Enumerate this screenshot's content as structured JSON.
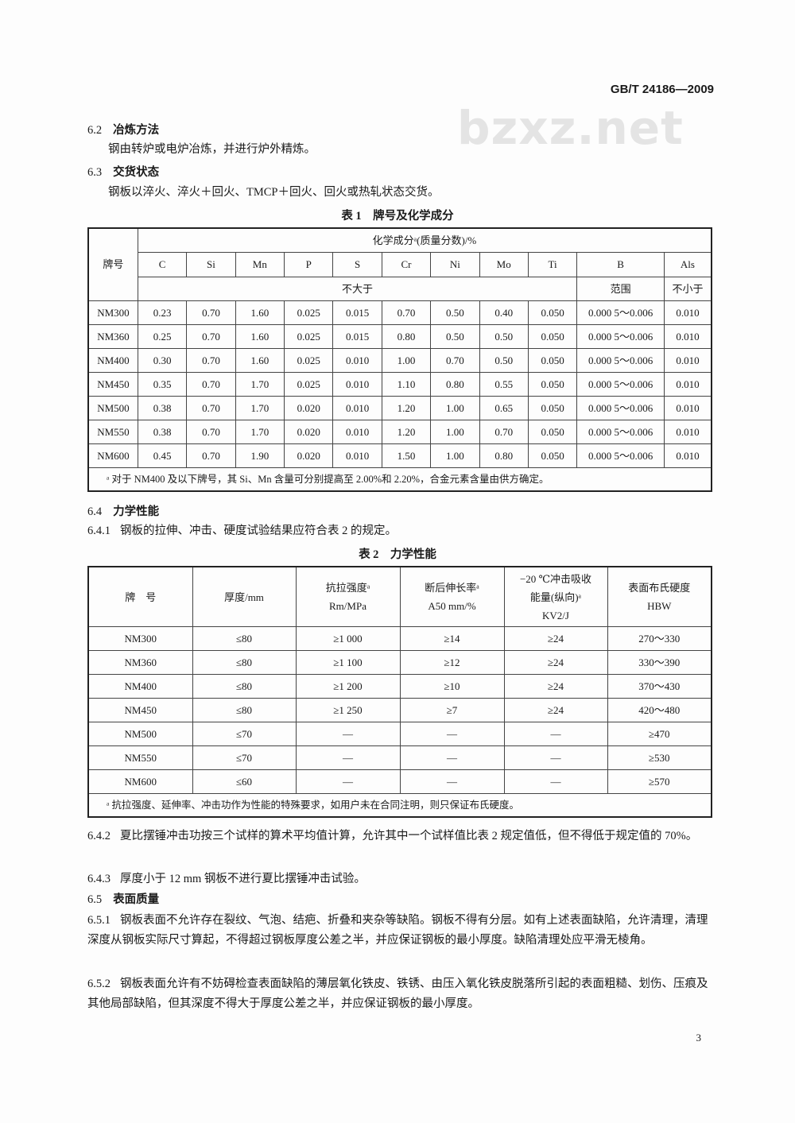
{
  "header": "GB/T 24186—2009",
  "watermark": "bzxz.net",
  "s62": {
    "num": "6.2",
    "title": "冶炼方法",
    "text": "钢由转炉或电炉冶炼，并进行炉外精炼。"
  },
  "s63": {
    "num": "6.3",
    "title": "交货状态",
    "text": "钢板以淬火、淬火＋回火、TMCP＋回火、回火或热轧状态交货。"
  },
  "table1": {
    "caption": "表 1　牌号及化学成分",
    "grade_header": "牌号",
    "group_header": "化学成分ᵃ(质量分数)/%",
    "elements": [
      "C",
      "Si",
      "Mn",
      "P",
      "S",
      "Cr",
      "Ni",
      "Mo",
      "Ti",
      "B",
      "Als"
    ],
    "limit_max": "不大于",
    "limit_range": "范围",
    "limit_min": "不小于",
    "rows": [
      [
        "NM300",
        "0.23",
        "0.70",
        "1.60",
        "0.025",
        "0.015",
        "0.70",
        "0.50",
        "0.40",
        "0.050",
        "0.000 5～0.006",
        "0.010"
      ],
      [
        "NM360",
        "0.25",
        "0.70",
        "1.60",
        "0.025",
        "0.015",
        "0.80",
        "0.50",
        "0.50",
        "0.050",
        "0.000 5～0.006",
        "0.010"
      ],
      [
        "NM400",
        "0.30",
        "0.70",
        "1.60",
        "0.025",
        "0.010",
        "1.00",
        "0.70",
        "0.50",
        "0.050",
        "0.000 5～0.006",
        "0.010"
      ],
      [
        "NM450",
        "0.35",
        "0.70",
        "1.70",
        "0.025",
        "0.010",
        "1.10",
        "0.80",
        "0.55",
        "0.050",
        "0.000 5～0.006",
        "0.010"
      ],
      [
        "NM500",
        "0.38",
        "0.70",
        "1.70",
        "0.020",
        "0.010",
        "1.20",
        "1.00",
        "0.65",
        "0.050",
        "0.000 5～0.006",
        "0.010"
      ],
      [
        "NM550",
        "0.38",
        "0.70",
        "1.70",
        "0.020",
        "0.010",
        "1.20",
        "1.00",
        "0.70",
        "0.050",
        "0.000 5～0.006",
        "0.010"
      ],
      [
        "NM600",
        "0.45",
        "0.70",
        "1.90",
        "0.020",
        "0.010",
        "1.50",
        "1.00",
        "0.80",
        "0.050",
        "0.000 5～0.006",
        "0.010"
      ]
    ],
    "footnote": "ᵃ 对于 NM400 及以下牌号，其 Si、Mn 含量可分别提高至 2.00%和 2.20%，合金元素含量由供方确定。"
  },
  "s64": {
    "num": "6.4",
    "title": "力学性能"
  },
  "s641": {
    "num": "6.4.1",
    "text": "钢板的拉伸、冲击、硬度试验结果应符合表 2 的规定。"
  },
  "table2": {
    "caption": "表 2　力学性能",
    "headers": [
      [
        "牌　号"
      ],
      [
        "厚度/mm"
      ],
      [
        "抗拉强度ᵃ",
        "Rm/MPa"
      ],
      [
        "断后伸长率ᵃ",
        "A50 mm/%"
      ],
      [
        "−20 ℃冲击吸收",
        "能量(纵向)ᵃ",
        "KV2/J"
      ],
      [
        "表面布氏硬度",
        "HBW"
      ]
    ],
    "rows": [
      [
        "NM300",
        "≤80",
        "≥1 000",
        "≥14",
        "≥24",
        "270～330"
      ],
      [
        "NM360",
        "≤80",
        "≥1 100",
        "≥12",
        "≥24",
        "330～390"
      ],
      [
        "NM400",
        "≤80",
        "≥1 200",
        "≥10",
        "≥24",
        "370～430"
      ],
      [
        "NM450",
        "≤80",
        "≥1 250",
        "≥7",
        "≥24",
        "420～480"
      ],
      [
        "NM500",
        "≤70",
        "—",
        "—",
        "—",
        "≥470"
      ],
      [
        "NM550",
        "≤70",
        "—",
        "—",
        "—",
        "≥530"
      ],
      [
        "NM600",
        "≤60",
        "—",
        "—",
        "—",
        "≥570"
      ]
    ],
    "footnote": "ᵃ 抗拉强度、延伸率、冲击功作为性能的特殊要求，如用户未在合同注明，则只保证布氏硬度。"
  },
  "s642": {
    "num": "6.4.2",
    "text": "夏比摆锤冲击功按三个试样的算术平均值计算，允许其中一个试样值比表 2 规定值低，但不得低于规定值的 70%。"
  },
  "s643": {
    "num": "6.4.3",
    "text": "厚度小于 12 mm 钢板不进行夏比摆锤冲击试验。"
  },
  "s65": {
    "num": "6.5",
    "title": "表面质量"
  },
  "s651": {
    "num": "6.5.1",
    "text": "钢板表面不允许存在裂纹、气泡、结疤、折叠和夹杂等缺陷。钢板不得有分层。如有上述表面缺陷，允许清理，清理深度从钢板实际尺寸算起，不得超过钢板厚度公差之半，并应保证钢板的最小厚度。缺陷清理处应平滑无棱角。"
  },
  "s652": {
    "num": "6.5.2",
    "text": "钢板表面允许有不妨碍检查表面缺陷的薄层氧化铁皮、铁锈、由压入氧化铁皮脱落所引起的表面粗糙、划伤、压痕及其他局部缺陷，但其深度不得大于厚度公差之半，并应保证钢板的最小厚度。"
  },
  "page_number": "3"
}
